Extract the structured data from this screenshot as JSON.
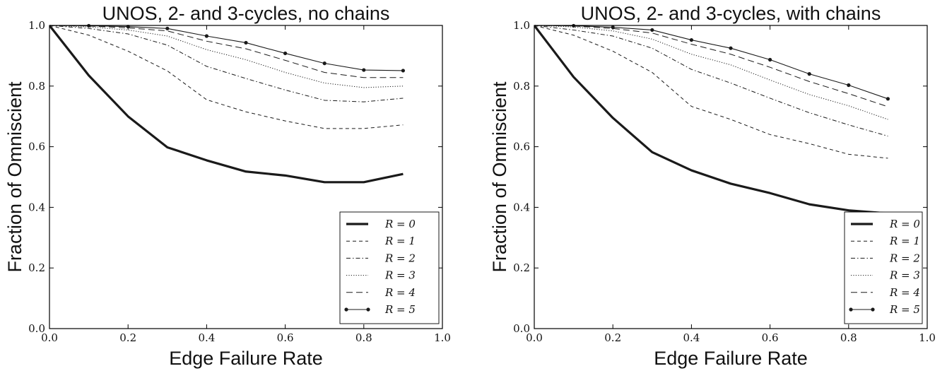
{
  "chart_data": [
    {
      "type": "line",
      "title": "UNOS, 2- and 3-cycles, no chains",
      "xlabel": "Edge Failure Rate",
      "ylabel": "Fraction of Omniscient",
      "xlim": [
        0.0,
        1.0
      ],
      "ylim": [
        0.0,
        1.0
      ],
      "xticks": [
        "0.0",
        "0.2",
        "0.4",
        "0.6",
        "0.8",
        "1.0"
      ],
      "yticks": [
        "0.0",
        "0.2",
        "0.4",
        "0.6",
        "0.8",
        "1.0"
      ],
      "legend_position": "lower-right",
      "x": [
        0.0,
        0.1,
        0.2,
        0.3,
        0.4,
        0.5,
        0.6,
        0.7,
        0.8,
        0.9
      ],
      "series": [
        {
          "name": "R = 0",
          "style": "thick",
          "values": [
            1.0,
            0.835,
            0.7,
            0.598,
            0.555,
            0.518,
            0.505,
            0.483,
            0.483,
            0.51
          ]
        },
        {
          "name": "R = 1",
          "style": "dashed",
          "values": [
            1.0,
            0.968,
            0.915,
            0.85,
            0.755,
            0.715,
            0.685,
            0.66,
            0.66,
            0.672
          ]
        },
        {
          "name": "R = 2",
          "style": "dashdot",
          "values": [
            1.0,
            0.99,
            0.972,
            0.935,
            0.865,
            0.825,
            0.787,
            0.753,
            0.748,
            0.76
          ]
        },
        {
          "name": "R = 3",
          "style": "dotted",
          "values": [
            1.0,
            0.995,
            0.985,
            0.965,
            0.92,
            0.887,
            0.845,
            0.81,
            0.795,
            0.8
          ]
        },
        {
          "name": "R = 4",
          "style": "longdash",
          "values": [
            1.0,
            0.998,
            0.992,
            0.982,
            0.948,
            0.923,
            0.885,
            0.845,
            0.828,
            0.828
          ]
        },
        {
          "name": "R = 5",
          "style": "marker",
          "values": [
            1.0,
            0.999,
            0.996,
            0.99,
            0.965,
            0.943,
            0.908,
            0.875,
            0.853,
            0.851
          ]
        }
      ]
    },
    {
      "type": "line",
      "title": "UNOS, 2- and 3-cycles, with chains",
      "xlabel": "Edge Failure Rate",
      "ylabel": "Fraction of Omniscient",
      "xlim": [
        0.0,
        1.0
      ],
      "ylim": [
        0.0,
        1.0
      ],
      "xticks": [
        "0.0",
        "0.2",
        "0.4",
        "0.6",
        "0.8",
        "1.0"
      ],
      "yticks": [
        "0.0",
        "0.2",
        "0.4",
        "0.6",
        "0.8",
        "1.0"
      ],
      "legend_position": "lower-right",
      "x": [
        0.0,
        0.1,
        0.2,
        0.3,
        0.4,
        0.5,
        0.6,
        0.7,
        0.8,
        0.9
      ],
      "series": [
        {
          "name": "R = 0",
          "style": "thick",
          "values": [
            1.0,
            0.83,
            0.695,
            0.582,
            0.522,
            0.478,
            0.447,
            0.41,
            0.39,
            0.38
          ]
        },
        {
          "name": "R = 1",
          "style": "dashed",
          "values": [
            1.0,
            0.968,
            0.915,
            0.845,
            0.733,
            0.69,
            0.64,
            0.61,
            0.575,
            0.562
          ]
        },
        {
          "name": "R = 2",
          "style": "dashdot",
          "values": [
            1.0,
            0.985,
            0.965,
            0.925,
            0.855,
            0.81,
            0.76,
            0.712,
            0.672,
            0.635
          ]
        },
        {
          "name": "R = 3",
          "style": "dotted",
          "values": [
            1.0,
            0.995,
            0.982,
            0.955,
            0.905,
            0.87,
            0.82,
            0.772,
            0.735,
            0.69
          ]
        },
        {
          "name": "R = 4",
          "style": "longdash",
          "values": [
            1.0,
            0.998,
            0.99,
            0.975,
            0.938,
            0.905,
            0.862,
            0.815,
            0.775,
            0.732
          ]
        },
        {
          "name": "R = 5",
          "style": "marker",
          "values": [
            1.0,
            0.999,
            0.994,
            0.985,
            0.952,
            0.925,
            0.887,
            0.84,
            0.803,
            0.758
          ]
        }
      ]
    }
  ]
}
